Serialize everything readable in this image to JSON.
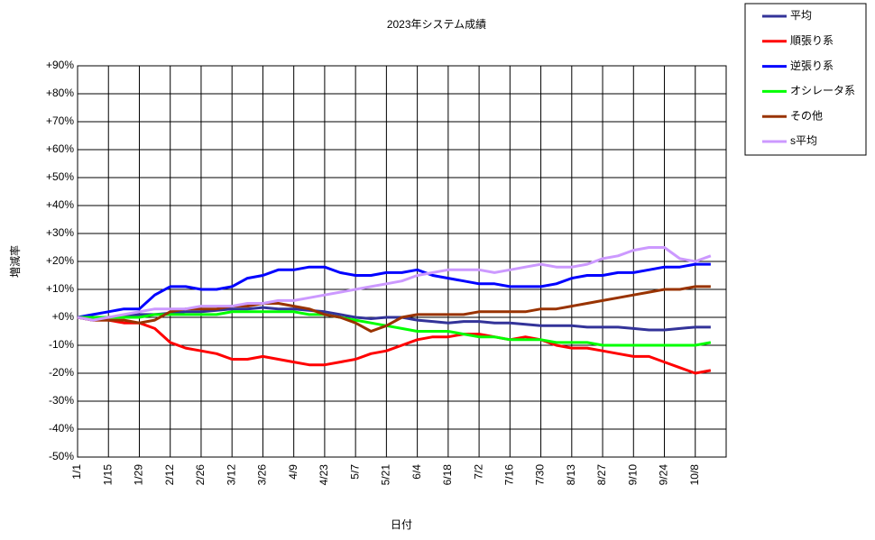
{
  "chart_data": {
    "type": "line",
    "title": "2023年システム成績",
    "x_label": "日付",
    "y_label": "増減率",
    "x": [
      0,
      7,
      14,
      21,
      28,
      35,
      42,
      49,
      56,
      63,
      70,
      77,
      84,
      91,
      98,
      105,
      112,
      119,
      126,
      133,
      140,
      147,
      154,
      161,
      168,
      175,
      182,
      189,
      196,
      203,
      210,
      217,
      224,
      231,
      238,
      245,
      252,
      259,
      266,
      273,
      280,
      287
    ],
    "xlim": [
      0,
      294
    ],
    "xticks": [
      {
        "value": 0,
        "label": "1/1"
      },
      {
        "value": 14,
        "label": "1/15"
      },
      {
        "value": 28,
        "label": "1/29"
      },
      {
        "value": 42,
        "label": "2/12"
      },
      {
        "value": 56,
        "label": "2/26"
      },
      {
        "value": 70,
        "label": "3/12"
      },
      {
        "value": 84,
        "label": "3/26"
      },
      {
        "value": 98,
        "label": "4/9"
      },
      {
        "value": 112,
        "label": "4/23"
      },
      {
        "value": 126,
        "label": "5/7"
      },
      {
        "value": 140,
        "label": "5/21"
      },
      {
        "value": 154,
        "label": "6/4"
      },
      {
        "value": 168,
        "label": "6/18"
      },
      {
        "value": 182,
        "label": "7/2"
      },
      {
        "value": 196,
        "label": "7/16"
      },
      {
        "value": 210,
        "label": "7/30"
      },
      {
        "value": 224,
        "label": "8/13"
      },
      {
        "value": 238,
        "label": "8/27"
      },
      {
        "value": 252,
        "label": "9/10"
      },
      {
        "value": 266,
        "label": "9/24"
      },
      {
        "value": 280,
        "label": "10/8"
      },
      294
    ],
    "ylim": [
      -50,
      90
    ],
    "yticks": [
      {
        "value": -50,
        "label": "-50%"
      },
      {
        "value": -40,
        "label": "-40%"
      },
      {
        "value": -30,
        "label": "-30%"
      },
      {
        "value": -20,
        "label": "-20%"
      },
      {
        "value": -10,
        "label": "-10%"
      },
      {
        "value": 0,
        "label": "+0%"
      },
      {
        "value": 10,
        "label": "+10%"
      },
      {
        "value": 20,
        "label": "+20%"
      },
      {
        "value": 30,
        "label": "+30%"
      },
      {
        "value": 40,
        "label": "+40%"
      },
      {
        "value": 50,
        "label": "+50%"
      },
      {
        "value": 60,
        "label": "+60%"
      },
      {
        "value": 70,
        "label": "+70%"
      },
      {
        "value": 80,
        "label": "+80%"
      },
      {
        "value": 90,
        "label": "+90%"
      }
    ],
    "grid": true,
    "series": [
      {
        "name": "平均",
        "color": "#333399",
        "values": [
          0,
          -1,
          0,
          0.5,
          1,
          1,
          1.5,
          2,
          2,
          2.5,
          3,
          3,
          3.5,
          3,
          3,
          2.5,
          2,
          1,
          0,
          -0.5,
          0,
          0,
          -1,
          -1.5,
          -2,
          -1.5,
          -1.5,
          -2,
          -2,
          -2.5,
          -3,
          -3,
          -3,
          -3.5,
          -3.5,
          -3.5,
          -4,
          -4.5,
          -4.5,
          -4,
          -3.5,
          -3.5
        ]
      },
      {
        "name": "順張り系",
        "color": "#ff0000",
        "values": [
          0,
          -1,
          -1,
          -2,
          -2,
          -4,
          -9,
          -11,
          -12,
          -13,
          -15,
          -15,
          -14,
          -15,
          -16,
          -17,
          -17,
          -16,
          -15,
          -13,
          -12,
          -10,
          -8,
          -7,
          -7,
          -6,
          -6,
          -7,
          -8,
          -7,
          -8,
          -10,
          -11,
          -11,
          -12,
          -13,
          -14,
          -14,
          -16,
          -18,
          -20,
          -19
        ]
      },
      {
        "name": "逆張り系",
        "color": "#0000ff",
        "values": [
          0,
          1,
          2,
          3,
          3,
          8,
          11,
          11,
          10,
          10,
          11,
          14,
          15,
          17,
          17,
          18,
          18,
          16,
          15,
          15,
          16,
          16,
          17,
          15,
          14,
          13,
          12,
          12,
          11,
          11,
          11,
          12,
          14,
          15,
          15,
          16,
          16,
          17,
          18,
          18,
          19,
          19
        ]
      },
      {
        "name": "オシレータ系",
        "color": "#00ff00",
        "values": [
          0,
          0,
          0,
          0,
          0,
          1,
          1,
          1,
          1,
          1,
          2,
          2,
          2,
          2,
          2,
          1,
          1,
          0,
          -1,
          -2,
          -3,
          -4,
          -5,
          -5,
          -5,
          -6,
          -7,
          -7,
          -8,
          -8,
          -8,
          -9,
          -9,
          -9,
          -10,
          -10,
          -10,
          -10,
          -10,
          -10,
          -10,
          -9
        ]
      },
      {
        "name": "その他",
        "color": "#993300",
        "values": [
          0,
          -1,
          -1,
          -1,
          -2,
          -1,
          2,
          3,
          3,
          3,
          4,
          4,
          5,
          5,
          4,
          3,
          1,
          0,
          -2,
          -5,
          -3,
          0,
          1,
          1,
          1,
          1,
          2,
          2,
          2,
          2,
          3,
          3,
          4,
          5,
          6,
          7,
          8,
          9,
          10,
          10,
          11,
          11
        ]
      },
      {
        "name": "s平均",
        "color": "#cc99ff",
        "values": [
          0,
          -1,
          0,
          1,
          2,
          3,
          3,
          3,
          4,
          4,
          4,
          5,
          5,
          6,
          6,
          7,
          8,
          9,
          10,
          11,
          12,
          13,
          15,
          16,
          17,
          17,
          17,
          16,
          17,
          18,
          19,
          18,
          18,
          19,
          21,
          22,
          24,
          25,
          25,
          21,
          20,
          22
        ]
      }
    ]
  }
}
